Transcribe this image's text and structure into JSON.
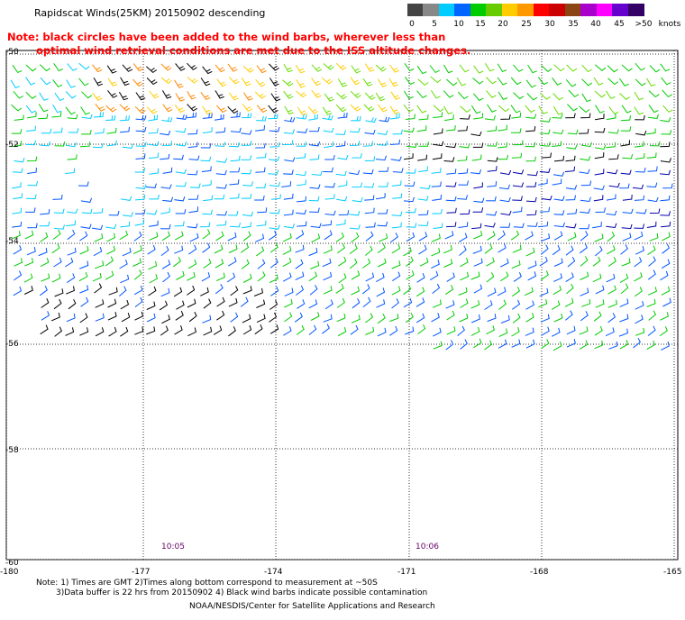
{
  "title": "Rapidscat Winds(25KM) 20150902 descending",
  "note": {
    "line1": "Note: black circles have been added to the wind barbs, wherever less than",
    "line2": "optimal wind retrieval conditions are met due to the ISS altitude changes."
  },
  "legend": {
    "unit": "knots",
    "labels": [
      "0",
      "5",
      "10",
      "15",
      "20",
      "25",
      "30",
      "35",
      "40",
      "45",
      ">50"
    ],
    "colors": [
      "#444444",
      "#888888",
      "#00ccff",
      "#0066ff",
      "#00cc00",
      "#66cc00",
      "#ffcc00",
      "#ff9900",
      "#ff0000",
      "#cc0000",
      "#8b4513",
      "#aa00cc",
      "#ff00ff",
      "#6600cc",
      "#330066"
    ]
  },
  "axes": {
    "lat_labels": [
      "-50",
      "-52",
      "-54",
      "-56",
      "-58",
      "-60"
    ],
    "lon_labels": [
      "-180",
      "-177",
      "-174",
      "-171",
      "-168",
      "-165"
    ]
  },
  "times": [
    "10:05",
    "10:06"
  ],
  "footnotes": {
    "line1": "Note: 1) Times are GMT 2)Times along bottom correspond to measurement at ~50S",
    "line2": "3)Data buffer is 22 hrs from 20150902 4) Black wind barbs indicate possible contamination"
  },
  "credit": "NOAA/NESDIS/Center for Satellite Applications and Research"
}
